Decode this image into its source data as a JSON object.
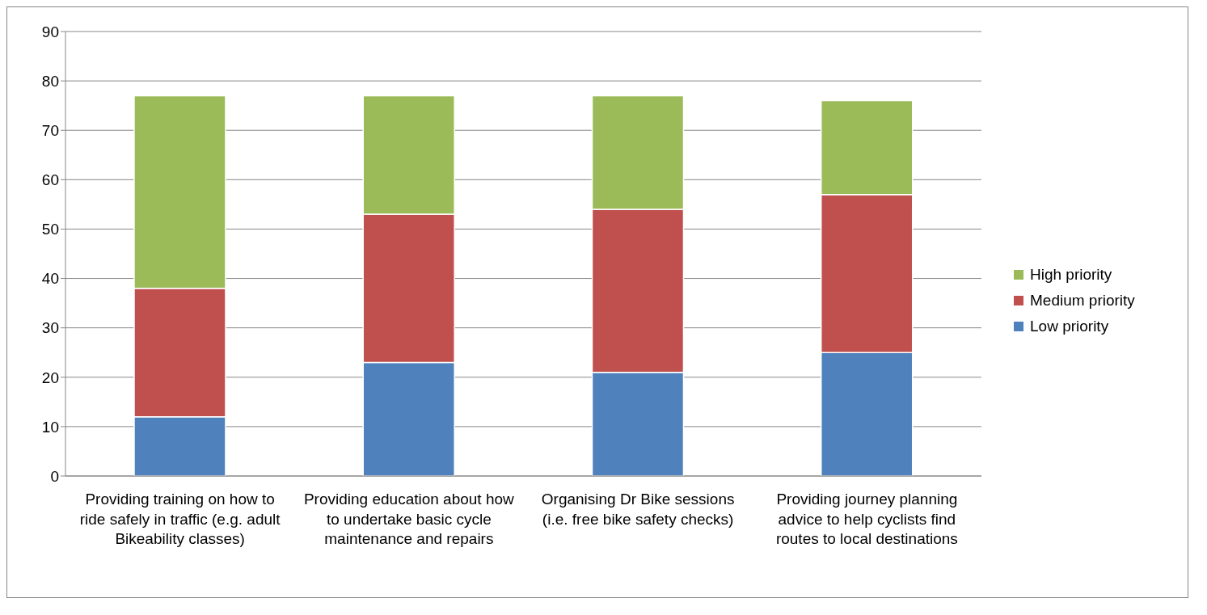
{
  "chart_data": {
    "type": "bar",
    "stacked": true,
    "categories": [
      "Providing training on how to ride safely in traffic (e.g. adult Bikeability classes)",
      "Providing education about how to undertake basic cycle maintenance and repairs",
      "Organising Dr Bike sessions (i.e. free bike safety checks)",
      "Providing journey planning advice to help cyclists find routes to local destinations"
    ],
    "series": [
      {
        "name": "Low priority",
        "color": "#4f81bd",
        "values": [
          12,
          23,
          21,
          25
        ]
      },
      {
        "name": "Medium priority",
        "color": "#c0504d",
        "values": [
          26,
          30,
          33,
          32
        ]
      },
      {
        "name": "High priority",
        "color": "#9bbb59",
        "values": [
          39,
          24,
          23,
          19
        ]
      }
    ],
    "ylim": [
      0,
      90
    ],
    "yticks": [
      0,
      10,
      20,
      30,
      40,
      50,
      60,
      70,
      80,
      90
    ],
    "grid": "y",
    "legend": "right"
  }
}
